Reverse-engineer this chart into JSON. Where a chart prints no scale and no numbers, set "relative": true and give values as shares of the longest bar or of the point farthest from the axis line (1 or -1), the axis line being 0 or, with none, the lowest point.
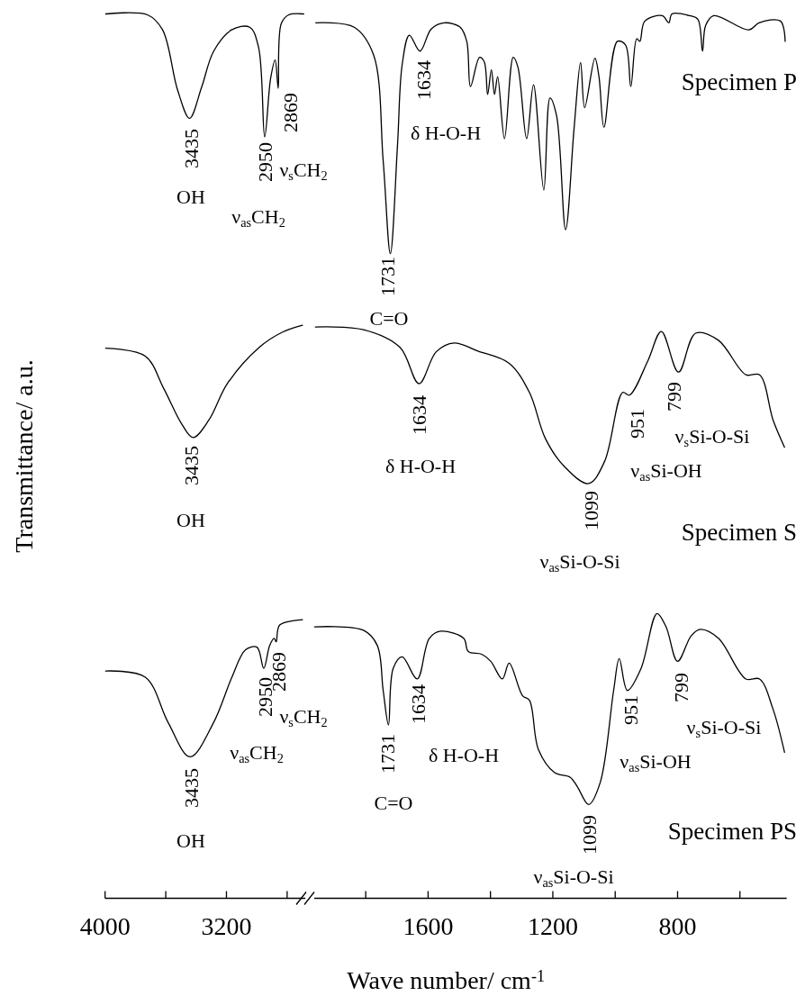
{
  "chart_data": [
    {
      "type": "line",
      "relative": true,
      "ylabel": "Transmittance/ a.u.",
      "xlim": [
        4000,
        2680
      ],
      "xticks": [
        4000,
        {
          "value": 3600,
          "label": null
        },
        3200,
        {
          "value": 2800,
          "label": null
        }
      ],
      "tick_labels": "x",
      "series": [
        {
          "color": "#000000",
          "x": [
            3996,
            3720,
            3621,
            3522,
            3443,
            3364,
            3284,
            3166,
            3047,
            2988,
            2948,
            2909,
            2879,
            2859,
            2839,
            2790,
            2691
          ],
          "values": [
            1.0,
            0.999,
            0.982,
            0.914,
            0.882,
            0.917,
            0.958,
            0.982,
            0.985,
            0.962,
            0.861,
            0.927,
            0.948,
            0.916,
            0.989,
            0.999,
            1.0
          ]
        },
        {
          "color": "#000000",
          "x": [
            3996,
            3735,
            3615,
            3494,
            3420,
            3315,
            3194,
            2984,
            2833,
            2699
          ],
          "values": [
            0.622,
            0.613,
            0.577,
            0.536,
            0.521,
            0.541,
            0.582,
            0.623,
            0.64,
            0.648
          ]
        },
        {
          "color": "#000000",
          "x": [
            3996,
            3735,
            3585,
            3440,
            3284,
            3164,
            3074,
            2999,
            2954,
            2915,
            2885,
            2872,
            2849,
            2699
          ],
          "values": [
            0.257,
            0.25,
            0.199,
            0.16,
            0.199,
            0.25,
            0.281,
            0.284,
            0.26,
            0.286,
            0.294,
            0.29,
            0.309,
            0.315
          ]
        }
      ],
      "annotations": [
        "3435",
        "OH",
        "2950",
        "2869",
        "ν$_{s}$CH$_{2}$",
        "ν$_{as}$CH$_{2}$",
        "3435",
        "OH",
        "2950",
        "2869",
        "ν$_{s}$CH$_{2}$",
        "ν$_{as}$CH$_{2}$",
        "3435",
        "OH"
      ]
    },
    {
      "type": "line",
      "relative": true,
      "xlabel": "Wave number/ cm$^{-1}$",
      "xlim": [
        1965,
        450
      ],
      "xticks": [
        {
          "value": 1800,
          "label": null
        },
        1600,
        {
          "value": 1400,
          "label": null
        },
        1200,
        {
          "value": 1000,
          "label": null
        },
        800,
        {
          "value": 600,
          "label": null
        }
      ],
      "tick_labels": "x",
      "series": [
        {
          "name": "Specimen P",
          "color": "#000000",
          "x": [
            1960,
            1837,
            1775,
            1744,
            1721,
            1698,
            1683,
            1660,
            1626,
            1590,
            1548,
            1497,
            1476,
            1464,
            1435,
            1420,
            1409,
            1397,
            1387,
            1377,
            1355,
            1327,
            1312,
            1284,
            1262,
            1229,
            1209,
            1188,
            1159,
            1132,
            1111,
            1098,
            1065,
            1052,
            1036,
            993,
            967,
            950,
            931,
            921,
            905,
            849,
            828,
            818,
            761,
            735,
            720,
            710,
            684,
            571,
            539,
            470,
            455
          ],
          "values": [
            0.99,
            0.985,
            0.954,
            0.834,
            0.729,
            0.852,
            0.943,
            0.976,
            0.958,
            0.983,
            0.99,
            0.985,
            0.969,
            0.918,
            0.951,
            0.946,
            0.909,
            0.937,
            0.909,
            0.929,
            0.859,
            0.951,
            0.94,
            0.859,
            0.92,
            0.801,
            0.905,
            0.885,
            0.756,
            0.87,
            0.945,
            0.894,
            0.95,
            0.929,
            0.872,
            0.969,
            0.965,
            0.918,
            0.972,
            0.969,
            0.992,
            0.998,
            0.99,
            1.0,
            0.998,
            0.994,
            0.958,
            0.987,
            0.998,
            0.982,
            0.99,
            0.992,
            0.969
          ]
        },
        {
          "name": "Specimen S",
          "color": "#000000",
          "x": [
            1961,
            1807,
            1690,
            1629,
            1574,
            1516,
            1442,
            1340,
            1275,
            1224,
            1165,
            1085,
            1034,
            976,
            954,
            895,
            852,
            797,
            742,
            669,
            581,
            537,
            494,
            457
          ],
          "values": [
            0.646,
            0.643,
            0.623,
            0.582,
            0.618,
            0.628,
            0.619,
            0.605,
            0.572,
            0.52,
            0.489,
            0.469,
            0.494,
            0.572,
            0.569,
            0.608,
            0.641,
            0.595,
            0.639,
            0.631,
            0.592,
            0.592,
            0.541,
            0.51
          ]
        },
        {
          "name": "Specimen PS",
          "color": "#000000",
          "x": [
            1964,
            1807,
            1763,
            1744,
            1727,
            1712,
            1683,
            1635,
            1596,
            1559,
            1486,
            1471,
            1428,
            1399,
            1362,
            1340,
            1297,
            1275,
            1246,
            1194,
            1145,
            1121,
            1085,
            1048,
            1005,
            987,
            961,
            917,
            866,
            837,
            800,
            756,
            727,
            669,
            581,
            537,
            494,
            457
          ],
          "values": [
            0.307,
            0.303,
            0.286,
            0.235,
            0.196,
            0.26,
            0.273,
            0.248,
            0.294,
            0.302,
            0.294,
            0.279,
            0.276,
            0.268,
            0.248,
            0.266,
            0.229,
            0.224,
            0.168,
            0.142,
            0.137,
            0.126,
            0.106,
            0.131,
            0.235,
            0.271,
            0.235,
            0.26,
            0.322,
            0.307,
            0.268,
            0.297,
            0.304,
            0.294,
            0.248,
            0.248,
            0.214,
            0.165
          ]
        }
      ],
      "annotations": [
        "1731",
        "C=O",
        "1634",
        "δ H-O-H",
        "1634",
        "δ H-O-H",
        "1099",
        "ν$_{as}$Si-O-Si",
        "951",
        "ν$_{as}$Si-OH",
        "799",
        "ν$_{s}$Si-O-Si",
        "1731",
        "1634",
        "δ H-O-H",
        "C=O",
        "1099",
        "ν$_{as}$Si-O-Si",
        "951",
        "ν$_{as}$Si-OH",
        "799",
        "ν$_{s}$Si-O-Si"
      ]
    }
  ]
}
